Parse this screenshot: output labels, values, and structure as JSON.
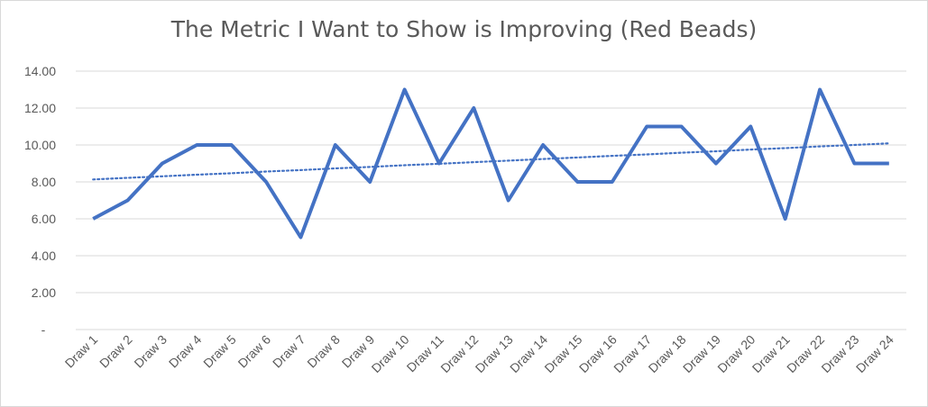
{
  "chart_data": {
    "type": "line",
    "title": "The Metric I Want to Show is Improving (Red Beads)",
    "xlabel": "",
    "ylabel": "",
    "categories": [
      "Draw 1",
      "Draw 2",
      "Draw 3",
      "Draw 4",
      "Draw 5",
      "Draw 6",
      "Draw 7",
      "Draw 8",
      "Draw 9",
      "Draw 10",
      "Draw 11",
      "Draw 12",
      "Draw 13",
      "Draw 14",
      "Draw 15",
      "Draw 16",
      "Draw 17",
      "Draw 18",
      "Draw 19",
      "Draw 20",
      "Draw 21",
      "Draw 22",
      "Draw 23",
      "Draw 24"
    ],
    "series": [
      {
        "values": [
          6,
          7,
          9,
          10,
          10,
          8,
          5,
          10,
          8,
          13,
          9,
          12,
          7,
          10,
          8,
          8,
          11,
          11,
          9,
          11,
          6,
          13,
          9,
          9
        ],
        "color": "#4472c4",
        "style": "solid"
      },
      {
        "values": [
          8.13,
          8.22,
          8.3,
          8.39,
          8.47,
          8.56,
          8.64,
          8.73,
          8.81,
          8.9,
          8.98,
          9.07,
          9.15,
          9.24,
          9.32,
          9.41,
          9.49,
          9.58,
          9.66,
          9.75,
          9.83,
          9.92,
          10.0,
          10.09
        ],
        "color": "#4472c4",
        "style": "dotted-linear-trendline"
      }
    ],
    "ylim": [
      0,
      14
    ],
    "yticks": [
      "-",
      "2.00",
      "4.00",
      "6.00",
      "8.00",
      "10.00",
      "12.00",
      "14.00"
    ],
    "grid": true,
    "legend": "none"
  }
}
